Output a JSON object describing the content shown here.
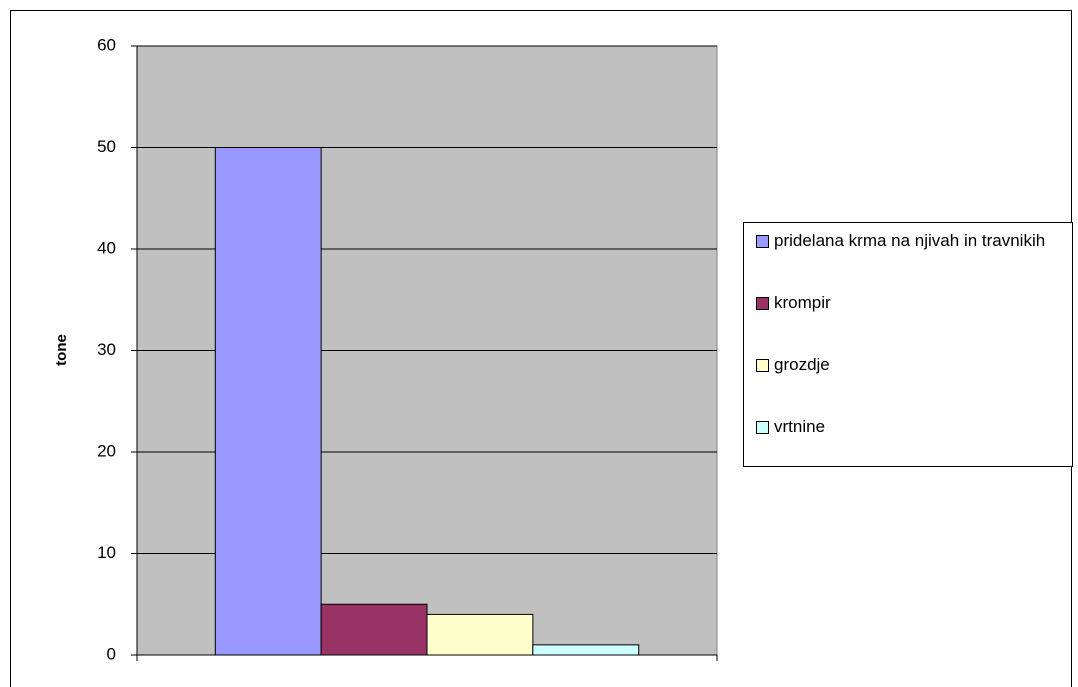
{
  "chart_data": {
    "type": "bar",
    "y_axis_label": "tone",
    "categories": [
      null
    ],
    "series": [
      {
        "name": "pridelana krma na njivah in travnikih",
        "color": "#9999ff",
        "values": [
          50
        ]
      },
      {
        "name": "krompir",
        "color": "#993366",
        "values": [
          5
        ]
      },
      {
        "name": "grozdje",
        "color": "#ffffcc",
        "values": [
          4
        ]
      },
      {
        "name": "vrtnine",
        "color": "#ccffff",
        "values": [
          1
        ]
      }
    ],
    "ylim": [
      0,
      60
    ],
    "yticks": [
      0,
      10,
      20,
      30,
      40,
      50,
      60
    ],
    "grid": true,
    "legend": "right"
  }
}
